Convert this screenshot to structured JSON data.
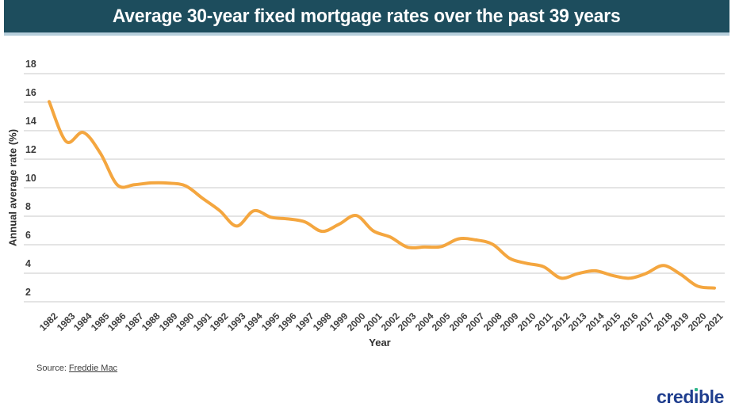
{
  "header": {
    "title": "Average 30-year fixed mortgage rates over the past 39 years",
    "bg_color": "#1d4d5d",
    "accent_border_color": "#b6cedb",
    "text_color": "#ffffff"
  },
  "chart_data": {
    "type": "line",
    "title": "Average 30-year fixed mortgage rates over the past 39 years",
    "xlabel": "Year",
    "ylabel": "Annual average rate (%)",
    "categories": [
      "1982",
      "1983",
      "1984",
      "1985",
      "1986",
      "1987",
      "1988",
      "1989",
      "1990",
      "1991",
      "1992",
      "1993",
      "1994",
      "1995",
      "1996",
      "1997",
      "1998",
      "1999",
      "2000",
      "2001",
      "2002",
      "2003",
      "2004",
      "2005",
      "2006",
      "2007",
      "2008",
      "2009",
      "2010",
      "2011",
      "2012",
      "2013",
      "2014",
      "2015",
      "2016",
      "2017",
      "2018",
      "2019",
      "2020",
      "2021"
    ],
    "series": [
      {
        "name": "Annual average 30-year fixed mortgage rate (%)",
        "values": [
          16.04,
          13.24,
          13.88,
          12.43,
          10.19,
          10.21,
          10.34,
          10.32,
          10.13,
          9.25,
          8.39,
          7.31,
          8.38,
          7.93,
          7.81,
          7.6,
          6.94,
          7.44,
          8.05,
          6.97,
          6.54,
          5.83,
          5.84,
          5.87,
          6.41,
          6.34,
          6.03,
          5.04,
          4.69,
          4.45,
          3.66,
          3.98,
          4.17,
          3.85,
          3.65,
          3.99,
          4.54,
          3.94,
          3.1,
          2.96
        ]
      }
    ],
    "ylim": [
      2,
      18
    ],
    "yticks": [
      2,
      4,
      6,
      8,
      10,
      12,
      14,
      16,
      18
    ],
    "grid": "horizontal-only",
    "legend": "none",
    "smooth": true,
    "line_color": "#f4a63f",
    "gridline_color": "#e4e4e4"
  },
  "footer": {
    "source_prefix": "Source:",
    "source_link": "Freddie Mac",
    "brand": {
      "name": "credible",
      "text_before": "cred",
      "i_char": "ı",
      "text_after": "ble",
      "color": "#1f3e8e",
      "dot_color": "#2fb789"
    }
  }
}
